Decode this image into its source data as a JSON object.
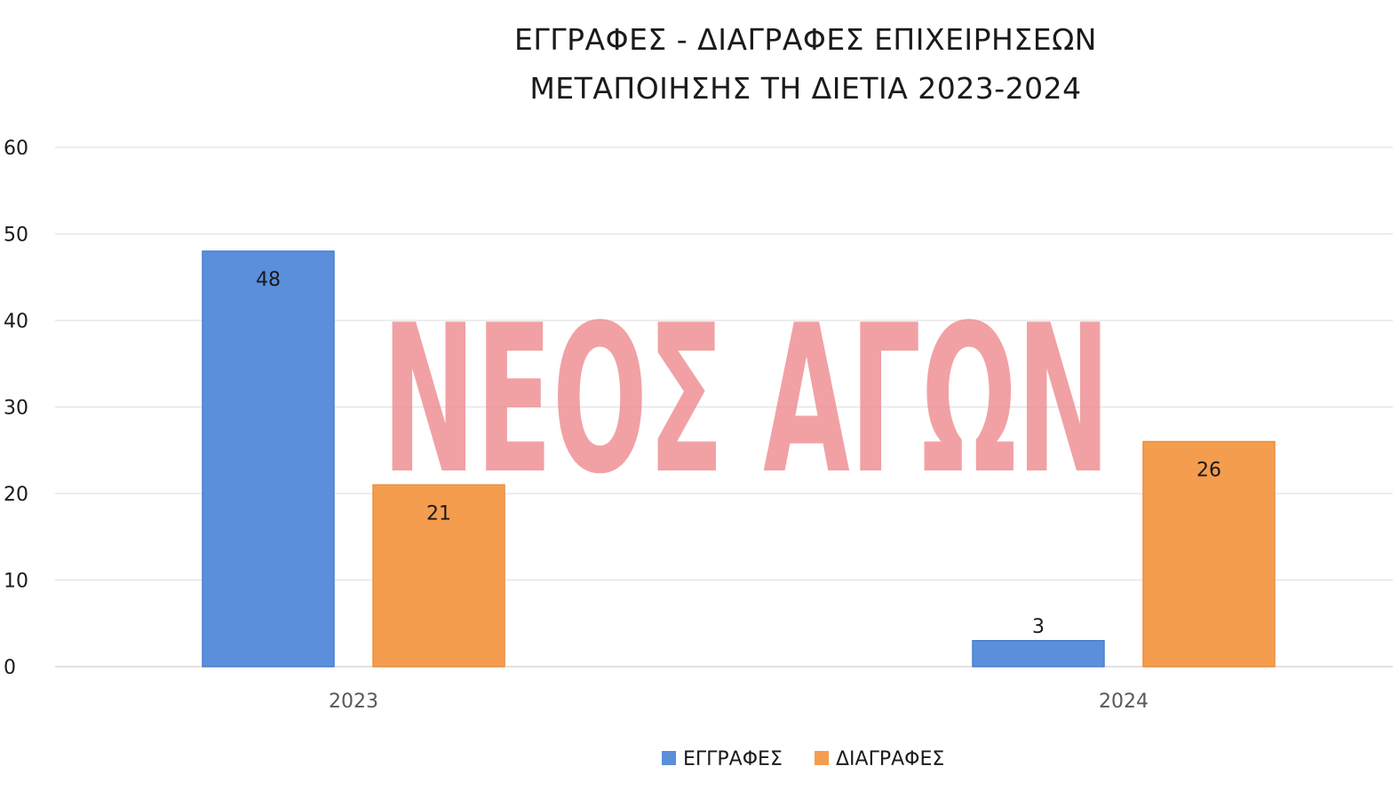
{
  "chart_data": {
    "type": "bar",
    "title": [
      "ΕΓΓΡΑΦΕΣ - ΔΙΑΓΡΑΦΕΣ ΕΠΙΧΕΙΡΗΣΕΩΝ",
      "ΜΕΤΑΠΟΙΗΣΗΣ ΤΗ ΔΙΕΤΙΑ 2023-2024"
    ],
    "categories": [
      "2023",
      "2024"
    ],
    "series": [
      {
        "name": "ΕΓΓΡΑΦΕΣ",
        "values": [
          48,
          3
        ],
        "color": "#5b8fdc"
      },
      {
        "name": "ΔΙΑΓΡΑΦΕΣ",
        "values": [
          21,
          26
        ],
        "color": "#f59d4f"
      }
    ],
    "ylim": [
      0,
      60
    ],
    "yticks": [
      0,
      10,
      20,
      30,
      40,
      50,
      60
    ],
    "grid": true,
    "legend_position": "bottom-center",
    "data_labels": true
  },
  "watermark": {
    "text": "ΝΕΟΣ ΑΓΩΝ",
    "color": "#ee8a8e"
  }
}
